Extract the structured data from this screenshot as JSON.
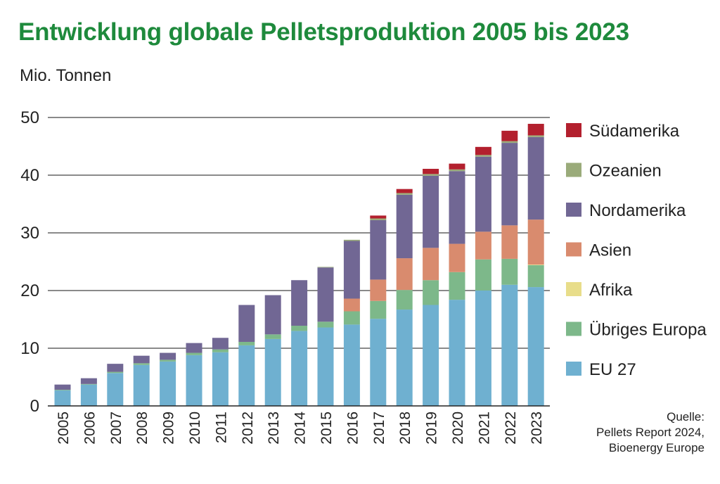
{
  "title": "Entwicklung globale Pelletsproduktion 2005 bis 2023",
  "unit_label": "Mio. Tonnen",
  "source": {
    "line1": "Quelle:",
    "line2": "Pellets Report 2024,",
    "line3": "Bioenergy Europe"
  },
  "colors": {
    "title": "#1e8a3c",
    "grid": "#444444"
  },
  "chart_data": {
    "type": "bar",
    "stacked": true,
    "ylim": [
      0,
      50
    ],
    "yticks": [
      0,
      10,
      20,
      30,
      40,
      50
    ],
    "grid": true,
    "legend_position": "right",
    "categories": [
      "2005",
      "2006",
      "2007",
      "2008",
      "2009",
      "2010",
      "2011",
      "2012",
      "2013",
      "2014",
      "2015",
      "2016",
      "2017",
      "2018",
      "2019",
      "2020",
      "2021",
      "2022",
      "2023"
    ],
    "series": [
      {
        "name": "EU 27",
        "color": "#6fb0d0",
        "values": [
          2.7,
          3.7,
          5.7,
          7.1,
          7.7,
          8.8,
          9.3,
          10.5,
          11.6,
          13.0,
          13.6,
          14.1,
          15.1,
          16.7,
          17.5,
          18.4,
          20.0,
          21.0,
          20.6
        ]
      },
      {
        "name": "Übriges Europa",
        "color": "#7db88a",
        "values": [
          0.1,
          0.1,
          0.2,
          0.3,
          0.3,
          0.4,
          0.5,
          0.6,
          0.8,
          0.9,
          1.0,
          2.3,
          3.1,
          3.4,
          4.3,
          4.8,
          5.4,
          4.5,
          3.8
        ]
      },
      {
        "name": "Afrika",
        "color": "#e8dd8a",
        "values": [
          0,
          0,
          0,
          0,
          0,
          0,
          0,
          0,
          0,
          0,
          0,
          0,
          0,
          0,
          0,
          0,
          0,
          0,
          0.1
        ]
      },
      {
        "name": "Asien",
        "color": "#d98b6e",
        "values": [
          0,
          0,
          0,
          0,
          0,
          0,
          0,
          0,
          0,
          0,
          0,
          2.2,
          3.7,
          5.5,
          5.6,
          4.9,
          4.8,
          5.8,
          7.8
        ]
      },
      {
        "name": "Nordamerika",
        "color": "#716794",
        "values": [
          0.9,
          1.0,
          1.4,
          1.3,
          1.2,
          1.7,
          2.0,
          6.4,
          6.8,
          7.9,
          9.4,
          10.0,
          10.3,
          11.0,
          12.5,
          12.6,
          13.0,
          14.3,
          14.3
        ]
      },
      {
        "name": "Ozeanien",
        "color": "#9aab7a",
        "values": [
          0,
          0,
          0,
          0,
          0,
          0,
          0,
          0,
          0,
          0,
          0.1,
          0.2,
          0.3,
          0.3,
          0.3,
          0.3,
          0.3,
          0.3,
          0.3
        ]
      },
      {
        "name": "Südamerika",
        "color": "#b3202e",
        "values": [
          0,
          0,
          0,
          0,
          0,
          0,
          0,
          0,
          0,
          0,
          0,
          0,
          0.5,
          0.7,
          0.9,
          1.0,
          1.4,
          1.8,
          2.0
        ]
      }
    ]
  }
}
